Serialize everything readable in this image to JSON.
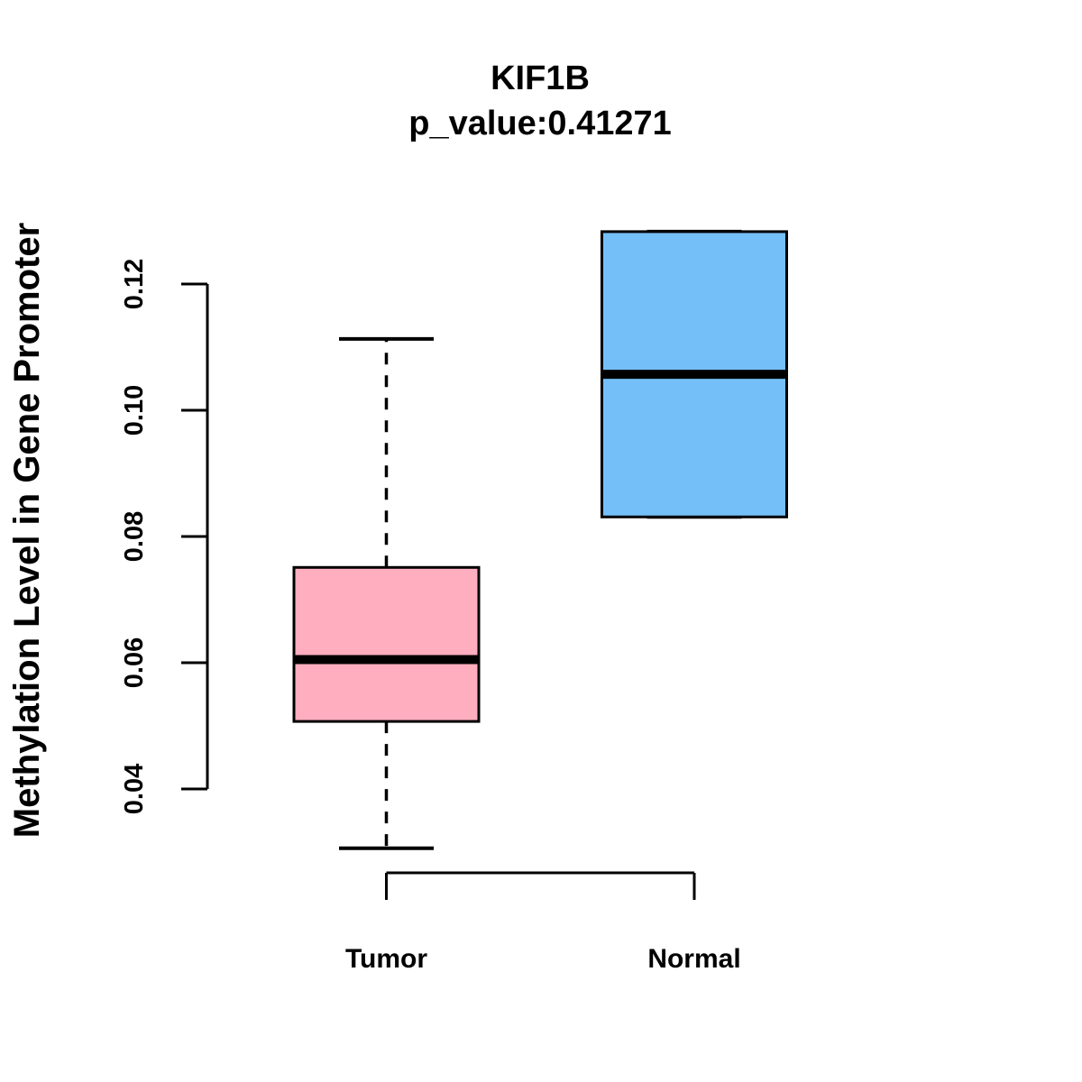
{
  "figure": {
    "title": "KIF1B",
    "subtitle": "p_value:0.41271",
    "y_axis_label": "Methylation Level in Gene Promoter"
  },
  "chart_data": {
    "type": "boxplot",
    "title": "KIF1B",
    "subtitle": "p_value:0.41271",
    "xlabel": "",
    "ylabel": "Methylation Level in Gene Promoter",
    "categories": [
      "Tumor",
      "Normal"
    ],
    "y_ticks": [
      0.04,
      0.06,
      0.08,
      0.1,
      0.12
    ],
    "y_tick_labels": [
      "0.04",
      "0.06",
      "0.08",
      "0.10",
      "0.12"
    ],
    "ylim": [
      0.0306,
      0.1283
    ],
    "grid": false,
    "legend": "none",
    "series": [
      {
        "name": "Tumor",
        "fill_color": "#FFAEC0",
        "whisker_low": 0.0306,
        "q1": 0.0507,
        "median": 0.0605,
        "q3": 0.0751,
        "whisker_high": 0.1113
      },
      {
        "name": "Normal",
        "fill_color": "#74BFF8",
        "whisker_low": 0.0831,
        "q1": 0.0831,
        "median": 0.1057,
        "q3": 0.1283,
        "whisker_high": 0.1283
      }
    ],
    "colors": {
      "box_border": "#000000",
      "median": "#000000",
      "axis": "#000000",
      "text": "#000000",
      "background": "#FFFFFF"
    }
  }
}
